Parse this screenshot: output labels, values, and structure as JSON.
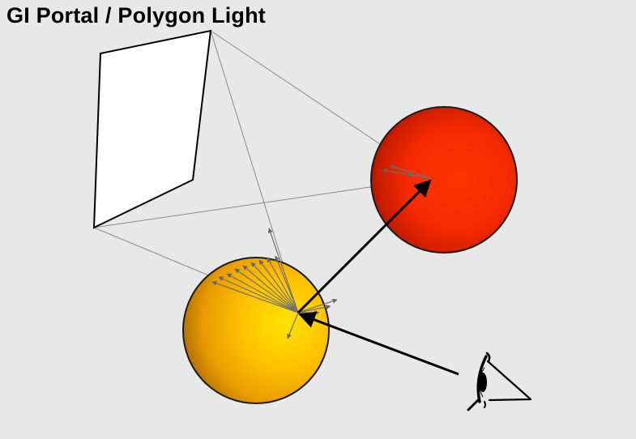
{
  "title": "GI Portal / Polygon Light",
  "colors": {
    "background": "#e8e8e8",
    "portal_fill": "#ffffff",
    "red_sphere": "#ff2a00",
    "yellow_sphere": "#ffc400",
    "outline": "#000000",
    "guide_lines": "#8a8a8a",
    "sample_rays": "#707070"
  },
  "icons": {
    "viewer": "eye-icon"
  }
}
